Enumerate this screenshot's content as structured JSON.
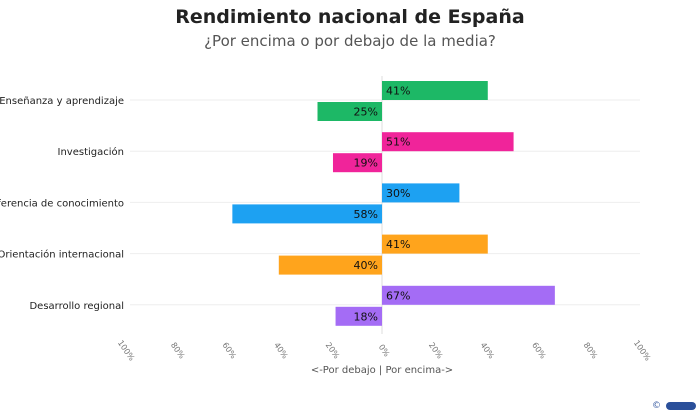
{
  "chart_data": {
    "type": "bar",
    "orientation": "horizontal-diverging",
    "title": "Rendimiento nacional de España",
    "subtitle": "¿Por encima o por debajo de la media?",
    "xlabel": "<-Por debajo | Por encima->",
    "categories": [
      "Enseñanza y aprendizaje",
      "Investigación",
      "Transferencia de conocimiento",
      "Orientación internacional",
      "Desarrollo regional"
    ],
    "series": [
      {
        "name": "Por encima",
        "values": [
          41,
          51,
          30,
          41,
          67
        ]
      },
      {
        "name": "Por debajo",
        "values": [
          25,
          19,
          58,
          40,
          18
        ]
      }
    ],
    "category_colors": [
      "#1db866",
      "#f0249a",
      "#1da1f2",
      "#ffa41c",
      "#a46cf5"
    ],
    "xlim": [
      -100,
      100
    ],
    "x_ticks": [
      -100,
      -80,
      -60,
      -40,
      -20,
      0,
      20,
      40,
      60,
      80,
      100
    ],
    "x_tick_labels": [
      "100%",
      "80%",
      "60%",
      "40%",
      "20%",
      "0%",
      "20%",
      "40%",
      "60%",
      "80%",
      "100%"
    ],
    "value_suffix": "%",
    "legend": "none",
    "grid": "horizontal"
  },
  "credit": "©"
}
